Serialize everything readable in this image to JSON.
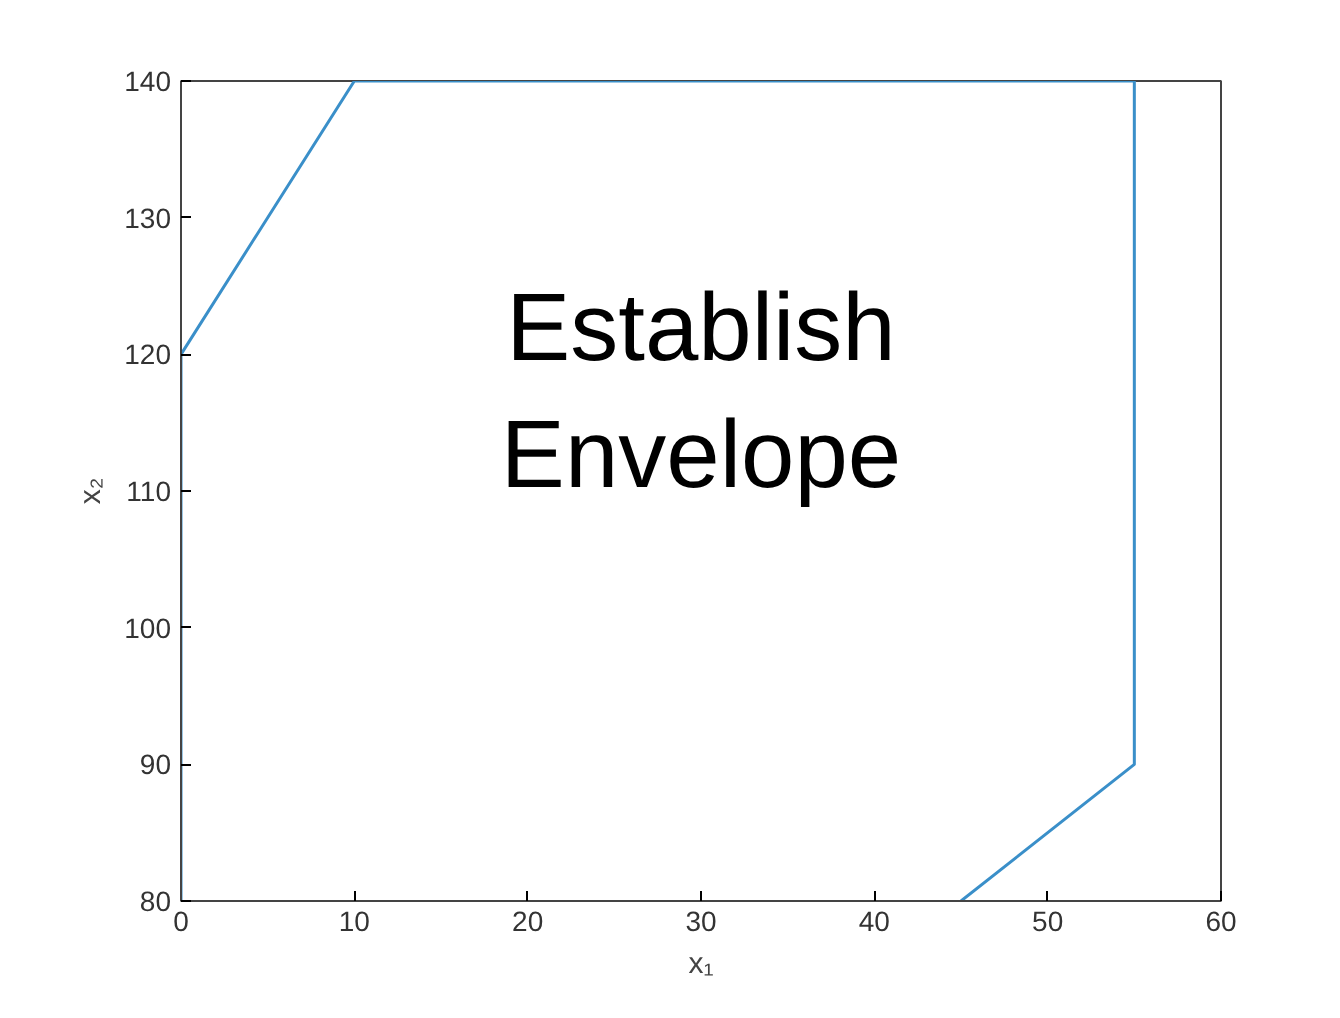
{
  "chart_data": {
    "type": "line",
    "xlabel": "x₁",
    "ylabel": "x₂",
    "x": [
      45,
      55,
      55,
      10,
      0,
      0
    ],
    "series": [
      {
        "color": "#3a8fc9",
        "values": [
          80,
          90,
          140,
          140,
          120,
          80
        ]
      }
    ],
    "xlim": [
      0,
      60
    ],
    "ylim": [
      80,
      140
    ],
    "xticks": [
      0,
      10,
      20,
      30,
      40,
      50,
      60
    ],
    "yticks": [
      80,
      90,
      100,
      110,
      120,
      130,
      140
    ],
    "annotations": [
      "Establish Envelope"
    ],
    "grid": false,
    "marker": "none",
    "line_style": "solid"
  }
}
